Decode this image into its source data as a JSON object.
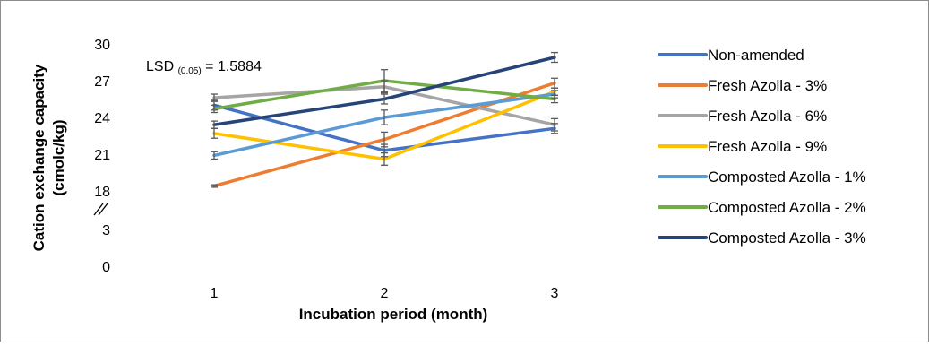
{
  "chart_data": {
    "type": "line",
    "title": "",
    "xlabel": "Incubation period (month)",
    "ylabel": "Cation exchange capacity (cmolc/kg)",
    "ylabel_lines": [
      "Cation exchange capacity",
      "(cmolc/kg)"
    ],
    "x": [
      1,
      2,
      3
    ],
    "x_tick_labels": [
      "1",
      "2",
      "3"
    ],
    "y_tick_labels": [
      "0",
      "3",
      "18",
      "21",
      "24",
      "27",
      "30"
    ],
    "y_axis_break": true,
    "ylim_upper": [
      18,
      30
    ],
    "ylim_lower": [
      0,
      3
    ],
    "grid": false,
    "legend_position": "right",
    "annotation": {
      "prefix": "LSD",
      "subscript": "(0.05)",
      "suffix": " = 1.5884"
    },
    "series": [
      {
        "name": "Non-amended",
        "color": "#4472C4",
        "values": [
          25.0,
          21.3,
          23.1
        ],
        "errors": [
          0.4,
          0.5,
          0.4
        ]
      },
      {
        "name": "Fresh Azolla - 3%",
        "color": "#ED7D31",
        "values": [
          18.4,
          22.2,
          26.8
        ],
        "errors": [
          0.1,
          0.6,
          0.4
        ]
      },
      {
        "name": "Fresh Azolla - 6%",
        "color": "#A5A5A5",
        "values": [
          25.6,
          26.5,
          23.4
        ],
        "errors": [
          0.3,
          0.5,
          0.5
        ]
      },
      {
        "name": "Fresh Azolla - 9%",
        "color": "#FFC000",
        "values": [
          22.7,
          20.6,
          26.1
        ],
        "errors": [
          0.4,
          0.5,
          0.3
        ]
      },
      {
        "name": "Composted Azolla - 1%",
        "color": "#5B9BD5",
        "values": [
          20.9,
          24.0,
          25.9
        ],
        "errors": [
          0.3,
          0.6,
          0.3
        ]
      },
      {
        "name": "Composted Azolla - 2%",
        "color": "#70AD47",
        "values": [
          24.7,
          27.0,
          25.5
        ],
        "errors": [
          0.3,
          0.9,
          0.3
        ]
      },
      {
        "name": "Composted Azolla - 3%",
        "color": "#264478",
        "values": [
          23.4,
          25.5,
          28.9
        ],
        "errors": [
          0.3,
          0.4,
          0.4
        ]
      }
    ]
  }
}
